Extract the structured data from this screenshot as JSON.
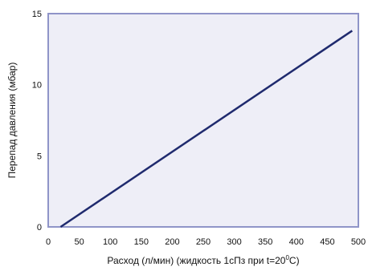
{
  "chart_data": {
    "type": "line",
    "xlabel": "Расход (л/мин) (жидкость 1сПз при t=20",
    "xlabel_sup": "0",
    "xlabel_end": "C)",
    "ylabel": "Перепад давления (мбар)",
    "xlim": [
      0,
      500
    ],
    "ylim": [
      0,
      15
    ],
    "x_ticks": [
      0,
      50,
      100,
      150,
      200,
      250,
      300,
      350,
      400,
      450,
      500
    ],
    "y_ticks": [
      0,
      5,
      10,
      15
    ],
    "grid": false,
    "series": [
      {
        "x": [
          20,
          490
        ],
        "y": [
          0,
          13.8
        ]
      }
    ],
    "colors": {
      "plot_background": "#EEEEF7",
      "plot_border": "#8F94C8",
      "line": "#1F2A6E"
    }
  }
}
